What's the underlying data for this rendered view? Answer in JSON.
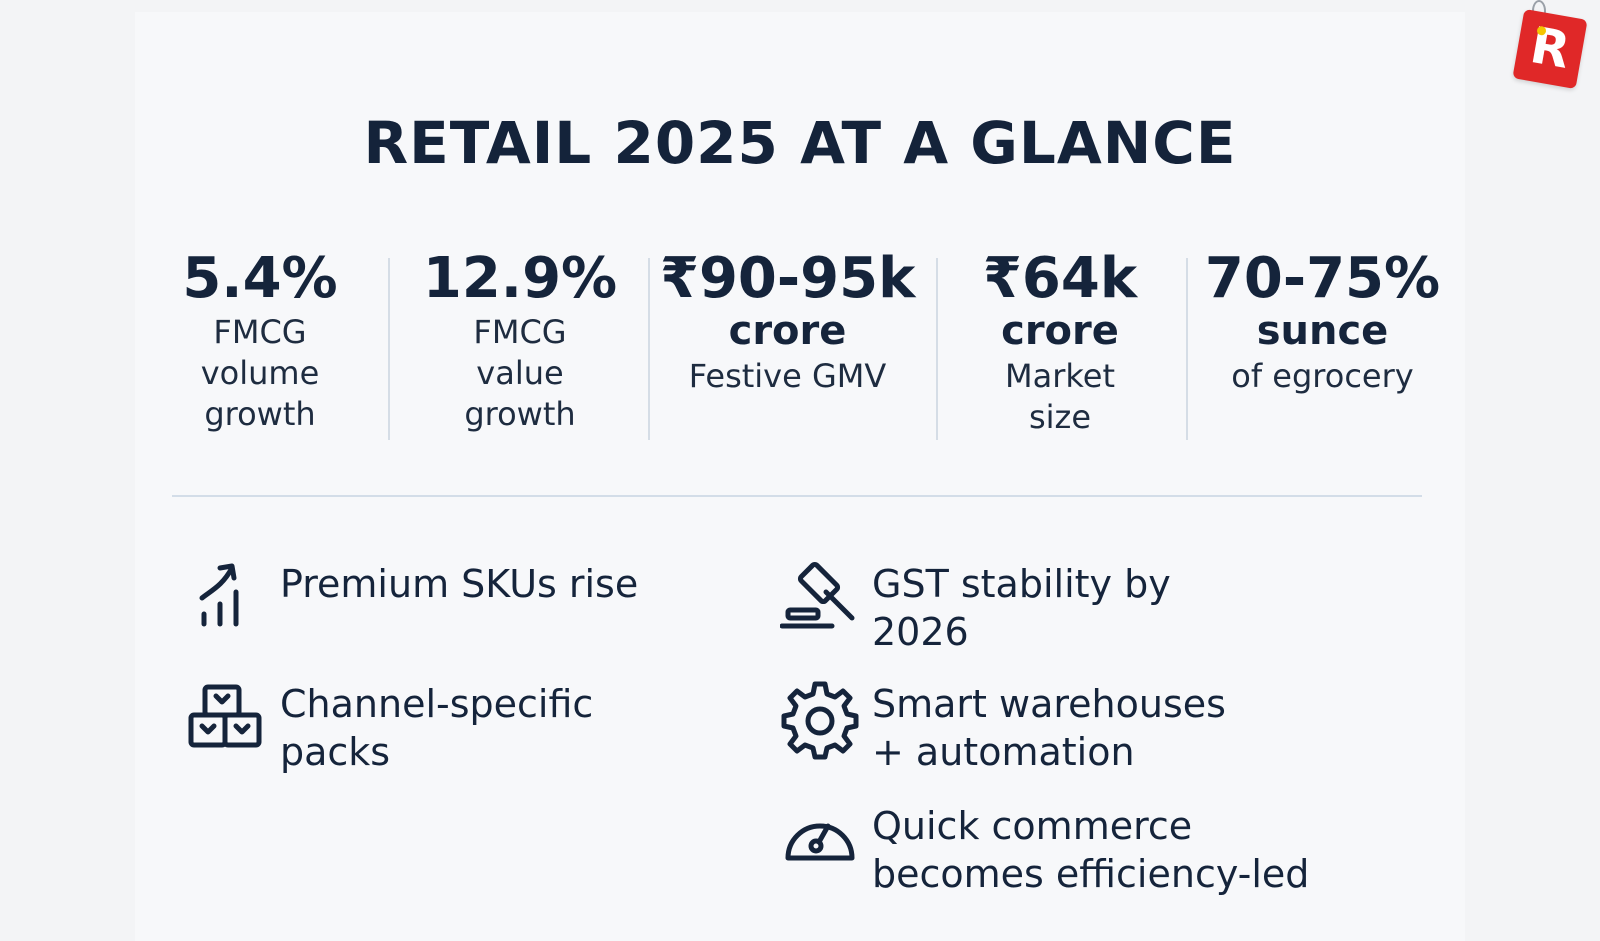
{
  "title": "RETAIL 2025 AT A GLANCE",
  "logo": {
    "letter": "R",
    "color": "#e02828",
    "accent": "#f5c400"
  },
  "stats": [
    {
      "value": "5.4%",
      "sub": "",
      "label_lines": [
        "FMCG",
        "volume",
        "growth"
      ]
    },
    {
      "value": "12.9%",
      "sub": "",
      "label_lines": [
        "FMCG",
        "value",
        "growth"
      ]
    },
    {
      "value": "₹90-95k",
      "sub": "crore",
      "label_lines": [
        "Festive GMV"
      ]
    },
    {
      "value": "₹64k",
      "sub": "crore",
      "label_lines": [
        "Market",
        "size"
      ]
    },
    {
      "value": "70-75%",
      "sub": "sunce",
      "label_lines": [
        "of egrocery"
      ]
    }
  ],
  "features_left": [
    {
      "icon": "trend-up-chart-icon",
      "lines": [
        "Premium SKUs rise"
      ]
    },
    {
      "icon": "boxes-icon",
      "lines": [
        "Channel-specific",
        "packs"
      ]
    }
  ],
  "features_right": [
    {
      "icon": "gavel-icon",
      "lines": [
        "GST stability by",
        "2026"
      ]
    },
    {
      "icon": "gear-icon",
      "lines": [
        "Smart warehouses",
        "+ automation"
      ]
    },
    {
      "icon": "speedometer-icon",
      "lines": [
        "Quick commerce",
        "becomes efficiency-led"
      ]
    }
  ],
  "colors": {
    "text": "#15243b",
    "divider": "#d5dde6",
    "background": "#f7f8fa"
  }
}
